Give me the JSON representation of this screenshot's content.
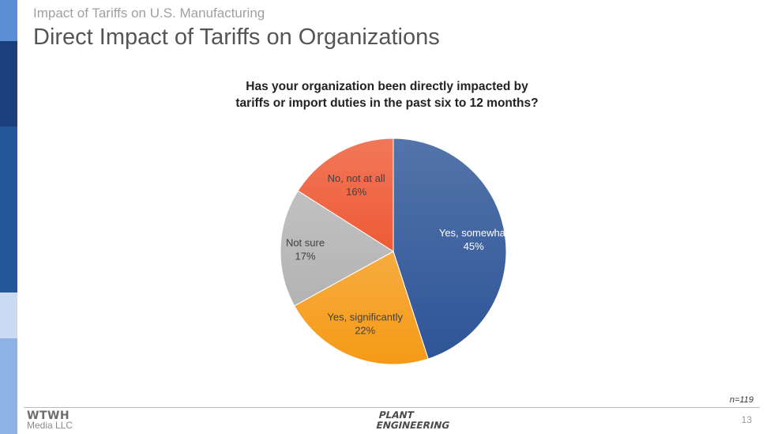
{
  "header": {
    "subtitle": "Impact of Tariffs on U.S. Manufacturing",
    "title": "Direct Impact of Tariffs on Organizations"
  },
  "chart_data": {
    "type": "pie",
    "title_lines": [
      "Has your organization been directly impacted by",
      "tariffs or import duties in the past six to 12 months?"
    ],
    "slices": [
      {
        "label": "Yes, somewhat",
        "value": 45,
        "value_label": "45%",
        "color": "#2e5597",
        "label_color": "#ffffff"
      },
      {
        "label": "Yes, significantly",
        "value": 22,
        "value_label": "22%",
        "color": "#f59a16",
        "label_color": "#404040"
      },
      {
        "label": "Not sure",
        "value": 17,
        "value_label": "17%",
        "color": "#b3b3b3",
        "label_color": "#404040"
      },
      {
        "label": "No, not at all",
        "value": 16,
        "value_label": "16%",
        "color": "#ee5a35",
        "label_color": "#404040"
      }
    ],
    "legend": "none"
  },
  "footer": {
    "sample_size": "n=119",
    "brand_top": "WTWH",
    "brand_bottom": "Media LLC",
    "publication_top": "PLANT",
    "publication_bottom": "ENGINEERING",
    "page_number": "13"
  },
  "colors": {
    "sidebar_dark": "#1a3f7a",
    "sidebar_mid": "#25579b",
    "sidebar_light": "#8fb2e6",
    "title_gray": "#555555"
  }
}
